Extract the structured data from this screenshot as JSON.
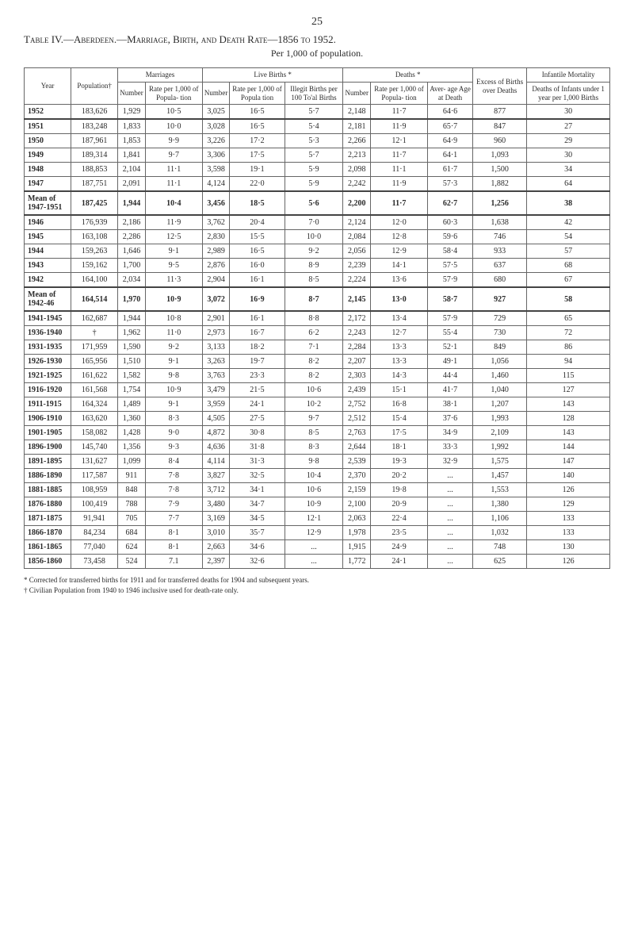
{
  "page_number": "25",
  "title": "Table IV.—Aberdeen.—Marriage, Birth, and Death Rate—1856 to 1952.",
  "subtitle": "Per 1,000 of population.",
  "header": {
    "year": "Year",
    "population": "Population†",
    "group_marriages": "Marriages",
    "group_births": "Live Births *",
    "group_deaths": "Deaths *",
    "excess": "Excess of Births over Deaths",
    "infantile": "Infantile Mortality",
    "number": "Number",
    "rate_pop": "Rate per 1,000 of Popula- tion",
    "rate_popula": "Rate per 1,000 of Popula tion",
    "illegit": "Illegit Births per 100 To'al Births",
    "rate_pop_d": "Rate per 1,000 of Popula- tion",
    "aver_age": "Aver- age Age at Death",
    "deaths_inf": "Deaths of Infants under 1 year per 1,000 Births"
  },
  "rows": [
    [
      "1952",
      "183,626",
      "1,929",
      "10·5",
      "3,025",
      "16·5",
      "5·7",
      "2,148",
      "11·7",
      "64·6",
      "877",
      "30"
    ],
    [
      "1951",
      "183,248",
      "1,833",
      "10·0",
      "3,028",
      "16·5",
      "5·4",
      "2,181",
      "11·9",
      "65·7",
      "847",
      "27"
    ],
    [
      "1950",
      "187,961",
      "1,853",
      "9·9",
      "3,226",
      "17·2",
      "5·3",
      "2,266",
      "12·1",
      "64·9",
      "960",
      "29"
    ],
    [
      "1949",
      "189,314",
      "1,841",
      "9·7",
      "3,306",
      "17·5",
      "5·7",
      "2,213",
      "11·7",
      "64·1",
      "1,093",
      "30"
    ],
    [
      "1948",
      "188,853",
      "2,104",
      "11·1",
      "3,598",
      "19·1",
      "5·9",
      "2,098",
      "11·1",
      "61·7",
      "1,500",
      "34"
    ],
    [
      "1947",
      "187,751",
      "2,091",
      "11·1",
      "4,124",
      "22·0",
      "5·9",
      "2,242",
      "11·9",
      "57·3",
      "1,882",
      "64"
    ],
    [
      "Mean of 1947-1951",
      "187,425",
      "1,944",
      "10·4",
      "3,456",
      "18·5",
      "5·6",
      "2,200",
      "11·7",
      "62·7",
      "1,256",
      "38"
    ],
    [
      "1946",
      "176,939",
      "2,186",
      "11·9",
      "3,762",
      "20·4",
      "7·0",
      "2,124",
      "12·0",
      "60·3",
      "1,638",
      "42"
    ],
    [
      "1945",
      "163,108",
      "2,286",
      "12·5",
      "2,830",
      "15·5",
      "10·0",
      "2,084",
      "12·8",
      "59·6",
      "746",
      "54"
    ],
    [
      "1944",
      "159,263",
      "1,646",
      "9·1",
      "2,989",
      "16·5",
      "9·2",
      "2,056",
      "12·9",
      "58·4",
      "933",
      "57"
    ],
    [
      "1943",
      "159,162",
      "1,700",
      "9·5",
      "2,876",
      "16·0",
      "8·9",
      "2,239",
      "14·1",
      "57·5",
      "637",
      "68"
    ],
    [
      "1942",
      "164,100",
      "2,034",
      "11·3",
      "2,904",
      "16·1",
      "8·5",
      "2,224",
      "13·6",
      "57·9",
      "680",
      "67"
    ],
    [
      "Mean of 1942-46",
      "164,514",
      "1,970",
      "10·9",
      "3,072",
      "16·9",
      "8·7",
      "2,145",
      "13·0",
      "58·7",
      "927",
      "58"
    ],
    [
      "1941-1945",
      "162,687",
      "1,944",
      "10·8",
      "2,901",
      "16·1",
      "8·8",
      "2,172",
      "13·4",
      "57·9",
      "729",
      "65"
    ],
    [
      "1936-1940",
      "†",
      "1,962",
      "11·0",
      "2,973",
      "16·7",
      "6·2",
      "2,243",
      "12·7",
      "55·4",
      "730",
      "72"
    ],
    [
      "1931-1935",
      "171,959",
      "1,590",
      "9·2",
      "3,133",
      "18·2",
      "7·1",
      "2,284",
      "13·3",
      "52·1",
      "849",
      "86"
    ],
    [
      "1926-1930",
      "165,956",
      "1,510",
      "9·1",
      "3,263",
      "19·7",
      "8·2",
      "2,207",
      "13·3",
      "49·1",
      "1,056",
      "94"
    ],
    [
      "1921-1925",
      "161,622",
      "1,582",
      "9·8",
      "3,763",
      "23·3",
      "8·2",
      "2,303",
      "14·3",
      "44·4",
      "1,460",
      "115"
    ],
    [
      "1916-1920",
      "161,568",
      "1,754",
      "10·9",
      "3,479",
      "21·5",
      "10·6",
      "2,439",
      "15·1",
      "41·7",
      "1,040",
      "127"
    ],
    [
      "1911-1915",
      "164,324",
      "1,489",
      "9·1",
      "3,959",
      "24·1",
      "10·2",
      "2,752",
      "16·8",
      "38·1",
      "1,207",
      "143"
    ],
    [
      "1906-1910",
      "163,620",
      "1,360",
      "8·3",
      "4,505",
      "27·5",
      "9·7",
      "2,512",
      "15·4",
      "37·6",
      "1,993",
      "128"
    ],
    [
      "1901-1905",
      "158,082",
      "1,428",
      "9·0",
      "4,872",
      "30·8",
      "8·5",
      "2,763",
      "17·5",
      "34·9",
      "2,109",
      "143"
    ],
    [
      "1896-1900",
      "145,740",
      "1,356",
      "9·3",
      "4,636",
      "31·8",
      "8·3",
      "2,644",
      "18·1",
      "33·3",
      "1,992",
      "144"
    ],
    [
      "1891-1895",
      "131,627",
      "1,099",
      "8·4",
      "4,114",
      "31·3",
      "9·8",
      "2,539",
      "19·3",
      "32·9",
      "1,575",
      "147"
    ],
    [
      "1886-1890",
      "117,587",
      "911",
      "7·8",
      "3,827",
      "32·5",
      "10·4",
      "2,370",
      "20·2",
      "...",
      "1,457",
      "140"
    ],
    [
      "1881-1885",
      "108,959",
      "848",
      "7·8",
      "3,712",
      "34·1",
      "10·6",
      "2,159",
      "19·8",
      "...",
      "1,553",
      "126"
    ],
    [
      "1876-1880",
      "100,419",
      "788",
      "7·9",
      "3,480",
      "34·7",
      "10·9",
      "2,100",
      "20·9",
      "...",
      "1,380",
      "129"
    ],
    [
      "1871-1875",
      "91,941",
      "705",
      "7·7",
      "3,169",
      "34·5",
      "12·1",
      "2,063",
      "22·4",
      "...",
      "1,106",
      "133"
    ],
    [
      "1866-1870",
      "84,234",
      "684",
      "8·1",
      "3,010",
      "35·7",
      "12·9",
      "1,978",
      "23·5",
      "...",
      "1,032",
      "133"
    ],
    [
      "1861-1865",
      "77,040",
      "624",
      "8·1",
      "2,663",
      "34·6",
      "...",
      "1,915",
      "24·9",
      "...",
      "748",
      "130"
    ],
    [
      "1856-1860",
      "73,458",
      "524",
      "7.1",
      "2,397",
      "32·6",
      "...",
      "1,772",
      "24·1",
      "...",
      "625",
      "126"
    ]
  ],
  "section_break_indices": [
    1,
    6,
    7,
    12,
    13
  ],
  "mean_row_indices": [
    6,
    12
  ],
  "footnote1": "* Corrected for transferred births for 1911 and for transferred deaths for 1904 and subsequent years.",
  "footnote2": "† Civilian Population from 1940 to 1946 inclusive used for death-rate only."
}
